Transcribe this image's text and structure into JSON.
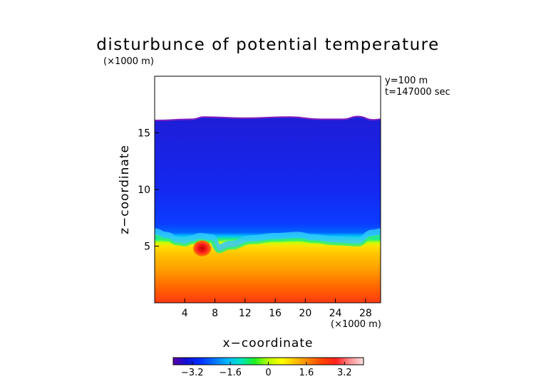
{
  "chart_data": {
    "type": "heatmap",
    "title": "disturbunce of potential temperature",
    "y_unit": "(×1000 m)",
    "x_unit": "(×1000 m)",
    "xlabel": "x−coordinate",
    "ylabel": "z−coordinate",
    "annotations": [
      "y=100 m",
      "t=147000 sec"
    ],
    "xlim": [
      0,
      30
    ],
    "ylim": [
      0,
      20
    ],
    "x_ticks": [
      {
        "value": 4,
        "label": "4"
      },
      {
        "value": 8,
        "label": "8"
      },
      {
        "value": 12,
        "label": "12"
      },
      {
        "value": 16,
        "label": "16"
      },
      {
        "value": 20,
        "label": "20"
      },
      {
        "value": 24,
        "label": "24"
      },
      {
        "value": 28,
        "label": "28"
      }
    ],
    "y_ticks": [
      {
        "value": 5,
        "label": "5"
      },
      {
        "value": 10,
        "label": "10"
      },
      {
        "value": 15,
        "label": "15"
      }
    ],
    "colorbar": {
      "range": [
        -4,
        4
      ],
      "tick_values": [
        -3.2,
        -1.6,
        0,
        1.6,
        3.2
      ],
      "tick_labels": [
        "−3.2",
        "−1.6",
        "0",
        "1.6",
        "3.2"
      ],
      "colors": [
        "#5a00a8",
        "#1010d8",
        "#0030ff",
        "#0070ff",
        "#00b8ff",
        "#00e6c0",
        "#20f020",
        "#b8ff00",
        "#ffff00",
        "#ffc000",
        "#ff8000",
        "#ff4000",
        "#ff2020",
        "#ff9090",
        "#ffe0e0"
      ]
    },
    "field_top_profile": [
      [
        0,
        16.1
      ],
      [
        5,
        16.2
      ],
      [
        6.5,
        16.4
      ],
      [
        12,
        16.3
      ],
      [
        18,
        16.4
      ],
      [
        22,
        16.2
      ],
      [
        25,
        16.2
      ],
      [
        27,
        16.45
      ],
      [
        29,
        16.15
      ],
      [
        30,
        16.2
      ]
    ],
    "interface_profile": [
      [
        0,
        5.7
      ],
      [
        1.5,
        5.4
      ],
      [
        3,
        5.0
      ],
      [
        4,
        4.9
      ],
      [
        5,
        5.1
      ],
      [
        6,
        5.3
      ],
      [
        7.5,
        5.2
      ],
      [
        8.5,
        4.3
      ],
      [
        10,
        4.6
      ],
      [
        13,
        5.1
      ],
      [
        16,
        5.3
      ],
      [
        19,
        5.4
      ],
      [
        21,
        5.2
      ],
      [
        24,
        5.0
      ],
      [
        27,
        4.9
      ],
      [
        29,
        5.6
      ],
      [
        30,
        5.7
      ]
    ],
    "warm_bubble": {
      "center": [
        6.3,
        4.8
      ],
      "radius": [
        1.2,
        0.7
      ],
      "value": 3.2
    }
  }
}
